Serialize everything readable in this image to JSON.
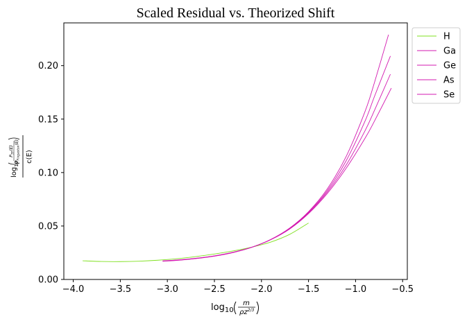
{
  "chart_data": {
    "type": "line",
    "title": "Scaled Residual vs. Theorized Shift",
    "xlabel": {
      "prefix": "log",
      "sub": "10",
      "numerator": "m",
      "denominator": "ρz",
      "denominator_exponent": "2/3"
    },
    "ylabel": {
      "prefix": "log",
      "sub": "10",
      "inner_numerator": "P",
      "inner_numerator_sub": "TF",
      "inner_numerator_arg": "(E)",
      "inner_denominator": "P",
      "inner_denominator_sub": "Fixgaston",
      "inner_denominator_arg": "(E)",
      "denominator": "c(E)"
    },
    "xlim": [
      -4.1,
      -0.45
    ],
    "ylim": [
      0.0,
      0.24
    ],
    "xticks": [
      -4.0,
      -3.5,
      -3.0,
      -2.5,
      -2.0,
      -1.5,
      -1.0,
      -0.5
    ],
    "xtick_labels": [
      "−4.0",
      "−3.5",
      "−3.0",
      "−2.5",
      "−2.0",
      "−1.5",
      "−1.0",
      "−0.5"
    ],
    "yticks": [
      0.0,
      0.05,
      0.1,
      0.15,
      0.2
    ],
    "ytick_labels": [
      "0.00",
      "0.05",
      "0.10",
      "0.15",
      "0.20"
    ],
    "grid": false,
    "legend_position": "outside upper right",
    "series": [
      {
        "name": "H",
        "color": "#7fe01f",
        "x": [
          -3.9,
          -3.7,
          -3.5,
          -3.3,
          -3.1,
          -2.9,
          -2.7,
          -2.5,
          -2.3,
          -2.1,
          -1.9,
          -1.7,
          -1.5
        ],
        "y": [
          0.0175,
          0.0168,
          0.0167,
          0.0171,
          0.018,
          0.0194,
          0.0214,
          0.0238,
          0.0267,
          0.0303,
          0.035,
          0.0422,
          0.0528
        ]
      },
      {
        "name": "Ga",
        "color": "#d31ab0",
        "x": [
          -3.05,
          -2.9,
          -2.7,
          -2.5,
          -2.3,
          -2.1,
          -1.9,
          -1.7,
          -1.5,
          -1.3,
          -1.1,
          -0.9,
          -0.8,
          -0.65
        ],
        "y": [
          0.017,
          0.0178,
          0.0195,
          0.0218,
          0.0252,
          0.0302,
          0.0375,
          0.0481,
          0.0634,
          0.0848,
          0.115,
          0.157,
          0.184,
          0.229
        ]
      },
      {
        "name": "Ge",
        "color": "#d31ab0",
        "x": [
          -3.05,
          -2.9,
          -2.7,
          -2.5,
          -2.3,
          -2.1,
          -1.9,
          -1.7,
          -1.5,
          -1.3,
          -1.1,
          -0.9,
          -0.8,
          -0.63
        ],
        "y": [
          0.0172,
          0.018,
          0.0196,
          0.0219,
          0.0253,
          0.0302,
          0.0374,
          0.0478,
          0.0628,
          0.0832,
          0.111,
          0.148,
          0.171,
          0.209
        ]
      },
      {
        "name": "As",
        "color": "#d31ab0",
        "x": [
          -3.05,
          -2.9,
          -2.7,
          -2.5,
          -2.3,
          -2.1,
          -1.9,
          -1.7,
          -1.5,
          -1.3,
          -1.1,
          -0.9,
          -0.8,
          -0.63
        ],
        "y": [
          0.0173,
          0.0181,
          0.0197,
          0.022,
          0.0254,
          0.0302,
          0.0373,
          0.0475,
          0.0622,
          0.0818,
          0.107,
          0.139,
          0.158,
          0.192
        ]
      },
      {
        "name": "Se",
        "color": "#d31ab0",
        "x": [
          -3.05,
          -2.9,
          -2.7,
          -2.5,
          -2.3,
          -2.1,
          -1.9,
          -1.7,
          -1.5,
          -1.3,
          -1.1,
          -0.9,
          -0.8,
          -0.62
        ],
        "y": [
          0.0174,
          0.0182,
          0.0198,
          0.0221,
          0.0255,
          0.0302,
          0.0372,
          0.0472,
          0.0616,
          0.0805,
          0.104,
          0.132,
          0.148,
          0.179
        ]
      }
    ]
  }
}
